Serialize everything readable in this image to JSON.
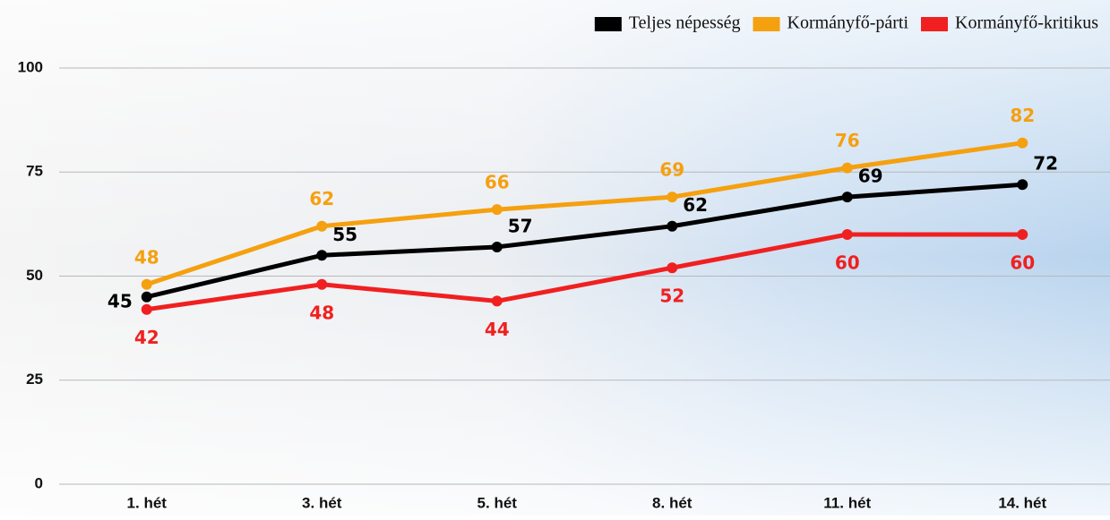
{
  "chart_data": {
    "type": "line",
    "categories": [
      "1. hét",
      "3. hét",
      "5. hét",
      "8. hét",
      "11. hét",
      "14. hét"
    ],
    "series": [
      {
        "name": "Teljes népesség",
        "color": "#000000",
        "values": [
          45,
          55,
          57,
          62,
          69,
          72
        ]
      },
      {
        "name": "Kormányfő-párti",
        "color": "#f5a00f",
        "values": [
          48,
          62,
          66,
          69,
          76,
          82
        ]
      },
      {
        "name": "Kormányfő-kritikus",
        "color": "#f02020",
        "values": [
          42,
          48,
          44,
          52,
          60,
          60
        ]
      }
    ],
    "ylim": [
      0,
      100
    ],
    "yticks": [
      0,
      25,
      50,
      75,
      100
    ],
    "grid": true,
    "legend": "top-right"
  }
}
